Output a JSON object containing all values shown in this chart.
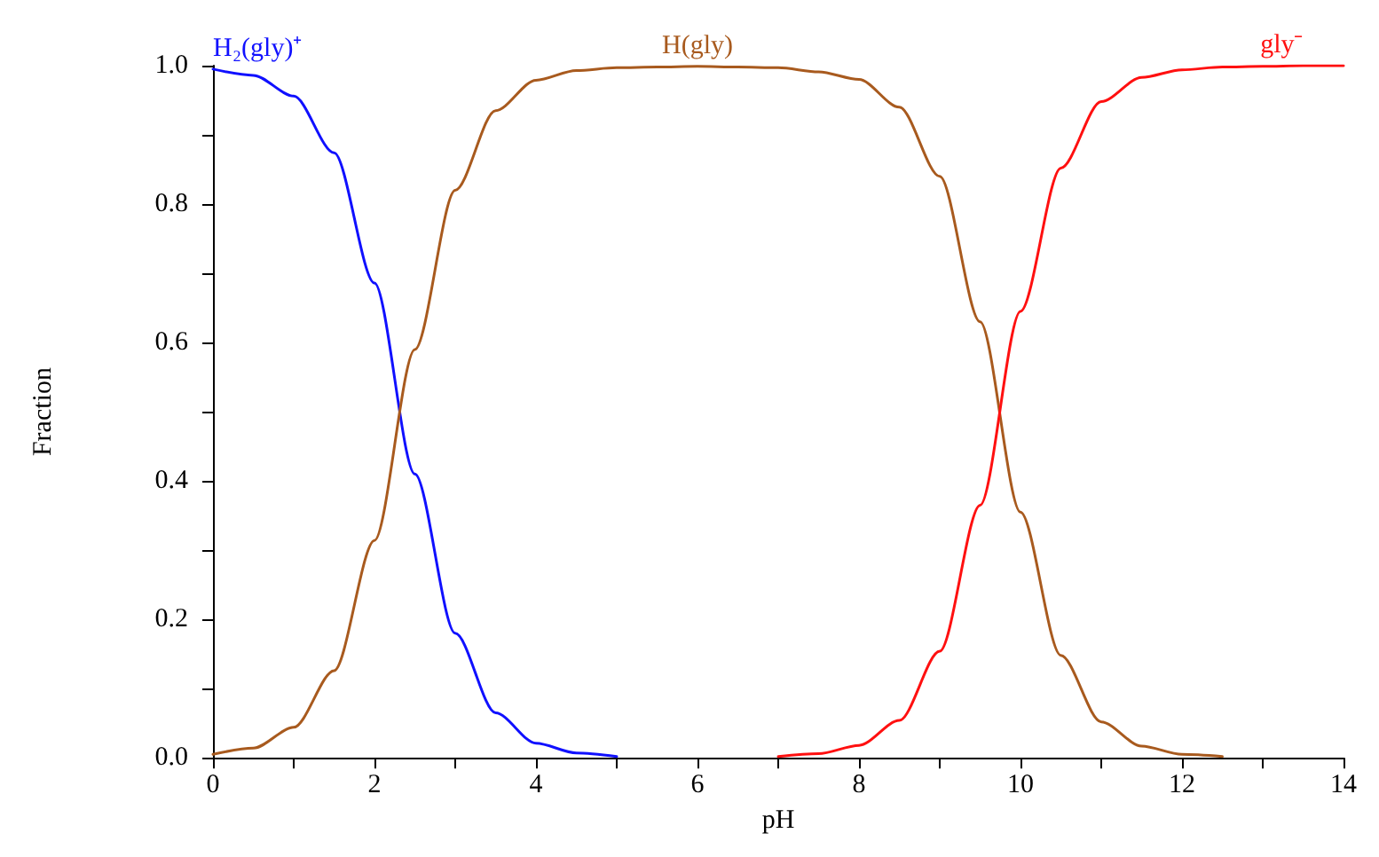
{
  "chart_data": {
    "type": "line",
    "xlabel": "pH",
    "ylabel": "Fraction",
    "xlim": [
      0,
      14
    ],
    "ylim": [
      0,
      1
    ],
    "xticks": [
      0,
      {
        "value": 1,
        "label": null
      },
      2,
      {
        "value": 3,
        "label": null
      },
      4,
      {
        "value": 5,
        "label": null
      },
      6,
      {
        "value": 7,
        "label": null
      },
      8,
      {
        "value": 9,
        "label": null
      },
      10,
      {
        "value": 11,
        "label": null
      },
      12,
      {
        "value": 13,
        "label": null
      },
      14
    ],
    "yticks": [
      {
        "value": 0,
        "label": "0.0"
      },
      {
        "value": 0.1,
        "label": null
      },
      {
        "value": 0.2,
        "label": "0.2"
      },
      {
        "value": 0.3,
        "label": null
      },
      {
        "value": 0.4,
        "label": "0.4"
      },
      {
        "value": 0.5,
        "label": null
      },
      {
        "value": 0.6,
        "label": "0.6"
      },
      {
        "value": 0.7,
        "label": null
      },
      {
        "value": 0.8,
        "label": "0.8"
      },
      {
        "value": 0.9,
        "label": null
      },
      {
        "value": 1,
        "label": "1.0"
      }
    ],
    "grid": false,
    "legend": false,
    "marker": "none",
    "line_style": "solid",
    "series": [
      {
        "name": "H₂(gly)⁺",
        "color": "#1010ff",
        "x": [
          0,
          0.5,
          1,
          1.5,
          2,
          2.5,
          3,
          3.5,
          4,
          4.5,
          5
        ],
        "values": [
          0.995,
          0.986,
          0.956,
          0.874,
          0.686,
          0.41,
          0.18,
          0.065,
          0.021,
          0.007,
          0.002
        ]
      },
      {
        "name": "H(gly)",
        "color": "#a85a1e",
        "x": [
          0,
          0.5,
          1,
          1.5,
          2,
          2.5,
          3,
          3.5,
          4,
          4.5,
          5,
          5.5,
          6,
          6.5,
          7,
          7.5,
          8,
          8.5,
          9,
          9.5,
          10,
          10.5,
          11,
          11.5,
          12,
          12.5
        ],
        "values": [
          0.005,
          0.014,
          0.044,
          0.126,
          0.314,
          0.59,
          0.82,
          0.935,
          0.979,
          0.993,
          0.997,
          0.998,
          0.999,
          0.998,
          0.997,
          0.991,
          0.98,
          0.94,
          0.84,
          0.63,
          0.355,
          0.148,
          0.052,
          0.017,
          0.005,
          0.002
        ]
      },
      {
        "name": "gly⁻",
        "color": "#ff1010",
        "x": [
          7,
          7.5,
          8,
          8.5,
          9,
          9.5,
          10,
          10.5,
          11,
          11.5,
          12,
          12.5,
          13,
          13.5,
          14
        ],
        "values": [
          0.002,
          0.006,
          0.018,
          0.054,
          0.154,
          0.365,
          0.645,
          0.852,
          0.948,
          0.983,
          0.994,
          0.998,
          0.999,
          1.0,
          1.0
        ]
      }
    ]
  }
}
